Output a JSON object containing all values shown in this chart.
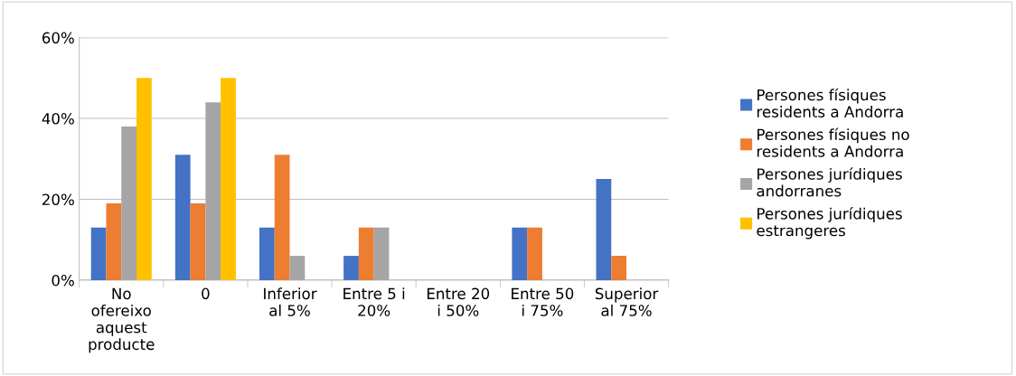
{
  "chart_data": {
    "type": "bar",
    "categories": [
      "No\nofereixo\naquest\nproducte",
      "0",
      "Inferior\nal 5%",
      "Entre 5 i\n20%",
      "Entre 20\ni 50%",
      "Entre 50\ni 75%",
      "Superior\nal 75%"
    ],
    "series": [
      {
        "name": "Persones físiques\nresidents a Andorra",
        "color": "#4472c4",
        "values": [
          13,
          31,
          13,
          6,
          0,
          13,
          25
        ]
      },
      {
        "name": "Persones físiques no\nresidents a Andorra",
        "color": "#ed7d31",
        "values": [
          19,
          19,
          31,
          13,
          0,
          13,
          6
        ]
      },
      {
        "name": "Persones jurídiques\nandorranes",
        "color": "#a5a5a5",
        "values": [
          38,
          44,
          6,
          13,
          0,
          0,
          0
        ]
      },
      {
        "name": "Persones jurídiques\nestrangeres",
        "color": "#ffc000",
        "values": [
          50,
          50,
          0,
          0,
          0,
          0,
          0
        ]
      }
    ],
    "ylim": [
      0,
      60
    ],
    "yticks": [
      {
        "value": 0,
        "label": "0%"
      },
      {
        "value": 20,
        "label": "20%"
      },
      {
        "value": 40,
        "label": "40%"
      },
      {
        "value": 60,
        "label": "60%"
      }
    ],
    "grid": "y",
    "legend": "right"
  }
}
